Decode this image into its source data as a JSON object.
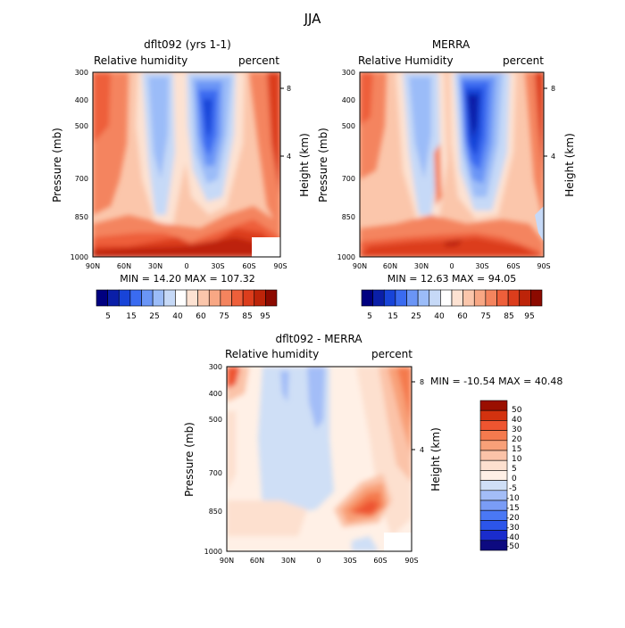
{
  "title": "JJA",
  "colors": {
    "scale": [
      "#000080",
      "#0a1fa8",
      "#1844d8",
      "#3a6bf0",
      "#6a95f6",
      "#9bbcf8",
      "#c6d9f7",
      "#ffffff",
      "#fde2d2",
      "#fbc6ab",
      "#f8a784",
      "#f4845e",
      "#ee5f3a",
      "#dc3d1c",
      "#bd2409",
      "#8c0a00"
    ],
    "diff_scale": [
      "#0d0a80",
      "#1a2ccc",
      "#2c55ea",
      "#4a78f5",
      "#7a9cf6",
      "#a3bdf7",
      "#cfdff6",
      "#fff0e6",
      "#fde0cf",
      "#fbc3a8",
      "#f8a078",
      "#f47a4e",
      "#ee5530",
      "#d3320f",
      "#9a0f00"
    ]
  },
  "chart_data": [
    {
      "type": "heatmap",
      "title": "dflt092 (yrs 1-1)",
      "subtitle_left": "Relative humidity",
      "subtitle_right": "percent",
      "xlabel": "",
      "ylabel": "Pressure (mb)",
      "ylabel_right": "Height (km)",
      "x_ticks": [
        "90N",
        "60N",
        "30N",
        "0",
        "30S",
        "60S",
        "90S"
      ],
      "y_ticks": [
        "300",
        "400",
        "500",
        "700",
        "850",
        "1000"
      ],
      "y_right_ticks": [
        "8",
        "4"
      ],
      "min_max": "MIN =  14.20   MAX = 107.32",
      "colorbar_labels": [
        "5",
        "15",
        "25",
        "40",
        "60",
        "75",
        "85",
        "95"
      ],
      "ylim": [
        1000,
        300
      ],
      "xlim": [
        90,
        -90
      ]
    },
    {
      "type": "heatmap",
      "title": "MERRA",
      "subtitle_left": "Relative Humidity",
      "subtitle_right": "percent",
      "xlabel": "",
      "ylabel": "Pressure (mb)",
      "ylabel_right": "Height (km)",
      "x_ticks": [
        "90N",
        "60N",
        "30N",
        "0",
        "30S",
        "60S",
        "90S"
      ],
      "y_ticks": [
        "300",
        "400",
        "500",
        "700",
        "850",
        "1000"
      ],
      "y_right_ticks": [
        "8",
        "4"
      ],
      "min_max": "MIN =  12.63   MAX =  94.05",
      "colorbar_labels": [
        "5",
        "15",
        "25",
        "40",
        "60",
        "75",
        "85",
        "95"
      ],
      "ylim": [
        1000,
        300
      ],
      "xlim": [
        90,
        -90
      ]
    },
    {
      "type": "heatmap",
      "title": "dflt092 - MERRA",
      "subtitle_left": "Relative humidity",
      "subtitle_right": "percent",
      "xlabel": "",
      "ylabel": "Pressure (mb)",
      "ylabel_right": "Height (km)",
      "x_ticks": [
        "90N",
        "60N",
        "30N",
        "0",
        "30S",
        "60S",
        "90S"
      ],
      "y_ticks": [
        "300",
        "400",
        "500",
        "700",
        "850",
        "1000"
      ],
      "y_right_ticks": [
        "8",
        "4"
      ],
      "min_max": "MIN = -10.54   MAX =  40.48",
      "colorbar_labels": [
        "50",
        "40",
        "30",
        "20",
        "15",
        "10",
        "5",
        "0",
        "-5",
        "-10",
        "-15",
        "-20",
        "-30",
        "-40",
        "-50"
      ],
      "ylim": [
        1000,
        300
      ],
      "xlim": [
        90,
        -90
      ]
    }
  ]
}
